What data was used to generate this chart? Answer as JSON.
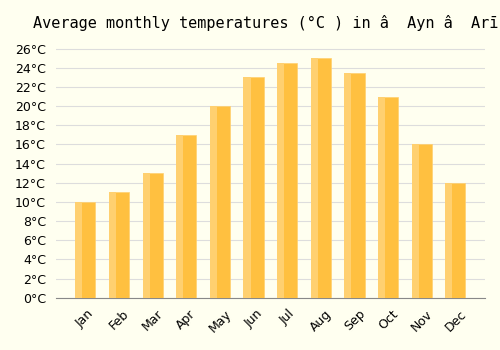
{
  "title": "Average monthly temperatures (°C ) in â  Ayn â  Arīk",
  "months": [
    "Jan",
    "Feb",
    "Mar",
    "Apr",
    "May",
    "Jun",
    "Jul",
    "Aug",
    "Sep",
    "Oct",
    "Nov",
    "Dec"
  ],
  "temperatures": [
    10.0,
    11.0,
    13.0,
    17.0,
    20.0,
    23.0,
    24.5,
    25.0,
    23.5,
    21.0,
    16.0,
    12.0
  ],
  "bar_color_main": "#FFC040",
  "bar_color_edge": "#FFD070",
  "ylim": [
    0,
    27
  ],
  "yticks": [
    0,
    2,
    4,
    6,
    8,
    10,
    12,
    14,
    16,
    18,
    20,
    22,
    24,
    26
  ],
  "background_color": "#FFFFF0",
  "grid_color": "#DDDDDD",
  "title_fontsize": 11,
  "tick_fontsize": 9
}
